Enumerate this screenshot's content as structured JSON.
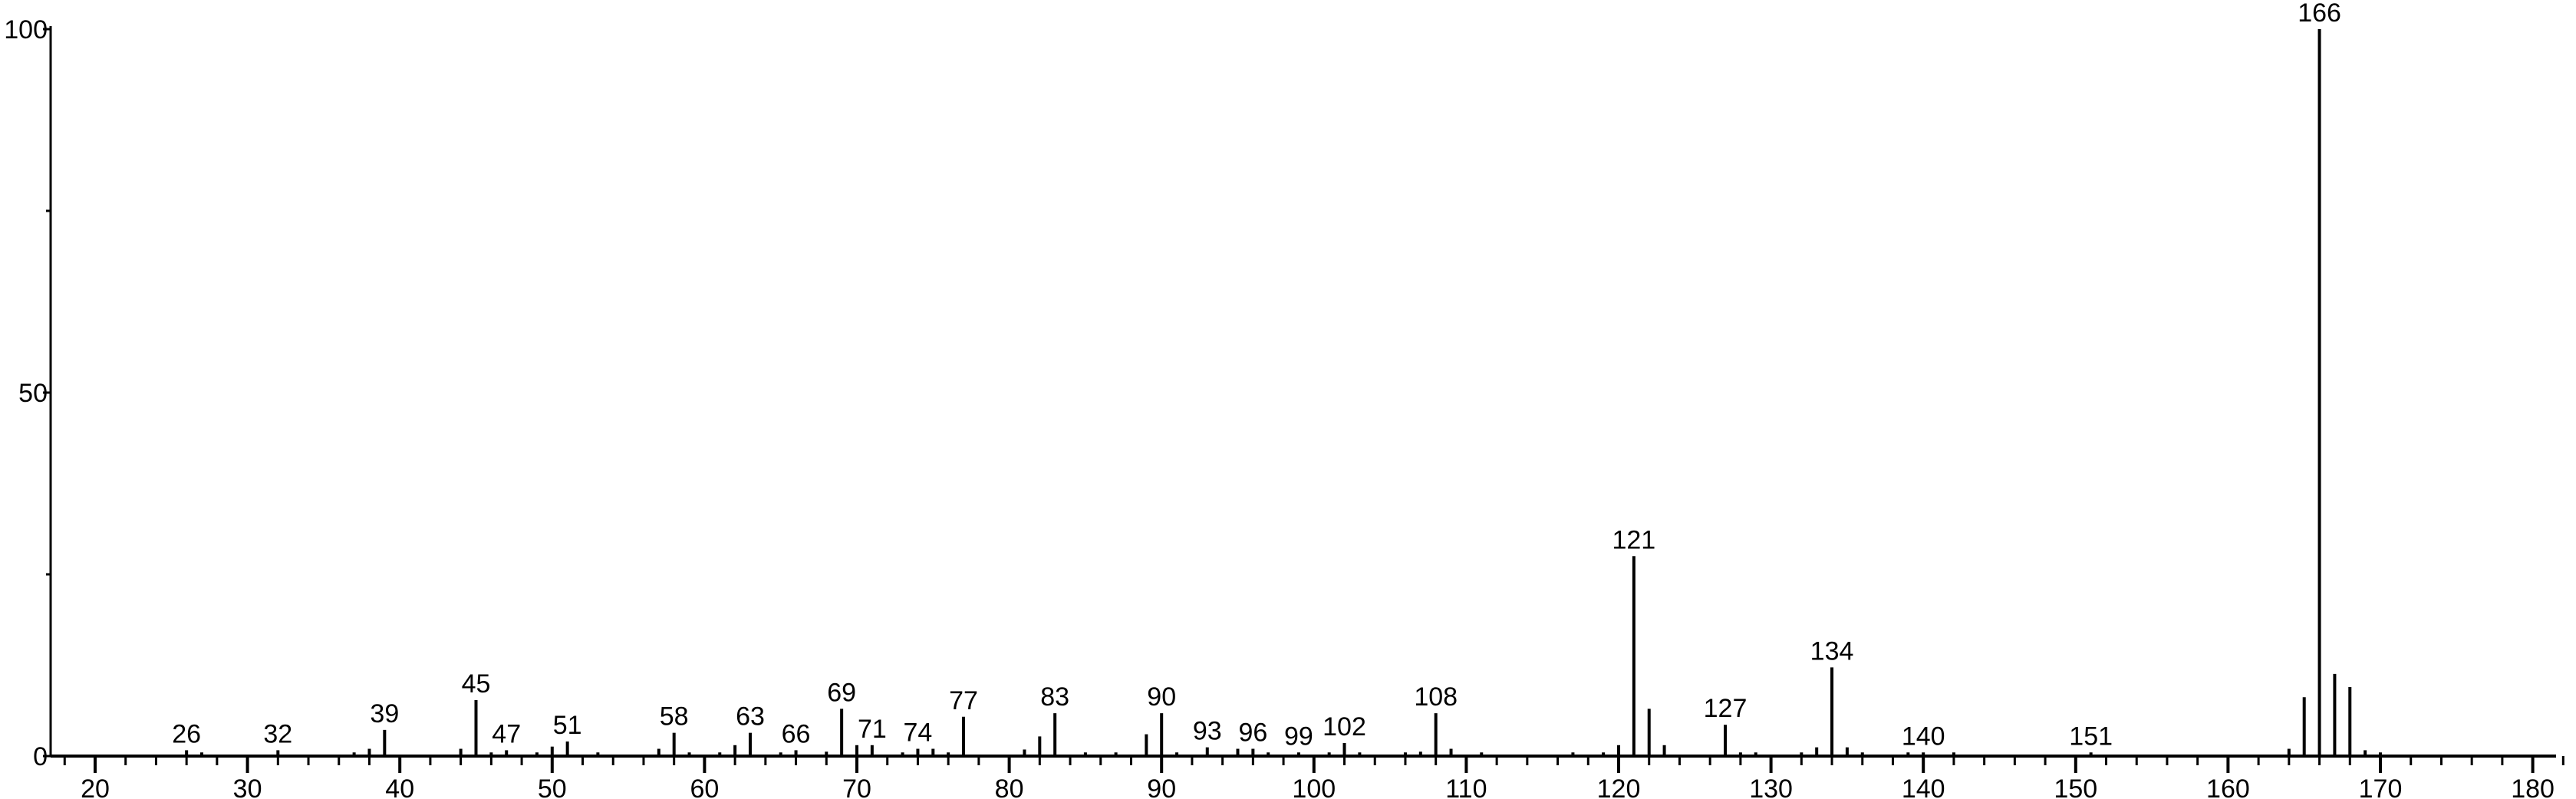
{
  "chart_data": {
    "type": "bar",
    "subtype": "mass-spectrum-stick",
    "title": "",
    "xlabel": "",
    "ylabel": "",
    "xlim": [
      17,
      182
    ],
    "ylim": [
      0,
      100
    ],
    "grid": false,
    "color": "#000000",
    "x_ticks": [
      20,
      30,
      40,
      50,
      60,
      70,
      80,
      90,
      100,
      110,
      120,
      130,
      140,
      150,
      160,
      170,
      180
    ],
    "y_ticks": [
      0,
      50,
      100
    ],
    "y_minor_ticks": [
      25,
      75
    ],
    "peaks": [
      {
        "x": 26,
        "y": 0.8,
        "label": "26"
      },
      {
        "x": 27,
        "y": 0.5
      },
      {
        "x": 32,
        "y": 0.8,
        "label": "32"
      },
      {
        "x": 37,
        "y": 0.5
      },
      {
        "x": 38,
        "y": 1.0
      },
      {
        "x": 39,
        "y": 3.6,
        "label": "39"
      },
      {
        "x": 44,
        "y": 1.0
      },
      {
        "x": 45,
        "y": 7.7,
        "label": "45"
      },
      {
        "x": 46,
        "y": 0.5
      },
      {
        "x": 47,
        "y": 0.8,
        "label": "47"
      },
      {
        "x": 49,
        "y": 0.5
      },
      {
        "x": 50,
        "y": 1.3
      },
      {
        "x": 51,
        "y": 2.0,
        "label": "51"
      },
      {
        "x": 53,
        "y": 0.5
      },
      {
        "x": 57,
        "y": 1.0
      },
      {
        "x": 58,
        "y": 3.2,
        "label": "58"
      },
      {
        "x": 59,
        "y": 0.5
      },
      {
        "x": 61,
        "y": 0.5
      },
      {
        "x": 62,
        "y": 1.5
      },
      {
        "x": 63,
        "y": 3.2,
        "label": "63"
      },
      {
        "x": 65,
        "y": 0.5
      },
      {
        "x": 66,
        "y": 0.8,
        "label": "66"
      },
      {
        "x": 68,
        "y": 0.6
      },
      {
        "x": 69,
        "y": 6.5,
        "label": "69"
      },
      {
        "x": 70,
        "y": 1.5
      },
      {
        "x": 71,
        "y": 1.5,
        "label": "71"
      },
      {
        "x": 73,
        "y": 0.5
      },
      {
        "x": 74,
        "y": 1.0,
        "label": "74"
      },
      {
        "x": 75,
        "y": 1.0
      },
      {
        "x": 76,
        "y": 0.5
      },
      {
        "x": 77,
        "y": 5.4,
        "label": "77"
      },
      {
        "x": 81,
        "y": 0.9
      },
      {
        "x": 82,
        "y": 2.7
      },
      {
        "x": 83,
        "y": 5.9,
        "label": "83"
      },
      {
        "x": 85,
        "y": 0.5
      },
      {
        "x": 87,
        "y": 0.5
      },
      {
        "x": 89,
        "y": 3.0
      },
      {
        "x": 90,
        "y": 5.9,
        "label": "90"
      },
      {
        "x": 91,
        "y": 0.5
      },
      {
        "x": 93,
        "y": 1.2,
        "label": "93"
      },
      {
        "x": 95,
        "y": 1.0
      },
      {
        "x": 96,
        "y": 1.0,
        "label": "96"
      },
      {
        "x": 97,
        "y": 0.5
      },
      {
        "x": 99,
        "y": 0.5,
        "label": "99"
      },
      {
        "x": 101,
        "y": 0.5
      },
      {
        "x": 102,
        "y": 1.8,
        "label": "102"
      },
      {
        "x": 103,
        "y": 0.5
      },
      {
        "x": 106,
        "y": 0.5
      },
      {
        "x": 107,
        "y": 0.6
      },
      {
        "x": 108,
        "y": 5.9,
        "label": "108"
      },
      {
        "x": 109,
        "y": 1.0
      },
      {
        "x": 111,
        "y": 0.5
      },
      {
        "x": 117,
        "y": 0.5
      },
      {
        "x": 119,
        "y": 0.5
      },
      {
        "x": 120,
        "y": 1.5
      },
      {
        "x": 121,
        "y": 27.5,
        "label": "121"
      },
      {
        "x": 122,
        "y": 6.5
      },
      {
        "x": 123,
        "y": 1.5
      },
      {
        "x": 127,
        "y": 4.3,
        "label": "127"
      },
      {
        "x": 128,
        "y": 0.5
      },
      {
        "x": 129,
        "y": 0.5
      },
      {
        "x": 132,
        "y": 0.5
      },
      {
        "x": 133,
        "y": 1.2
      },
      {
        "x": 134,
        "y": 12.2,
        "label": "134"
      },
      {
        "x": 135,
        "y": 1.2
      },
      {
        "x": 136,
        "y": 0.5
      },
      {
        "x": 139,
        "y": 0.5
      },
      {
        "x": 140,
        "y": 0.5,
        "label": "140"
      },
      {
        "x": 142,
        "y": 0.5
      },
      {
        "x": 151,
        "y": 0.5,
        "label": "151"
      },
      {
        "x": 164,
        "y": 1.0
      },
      {
        "x": 165,
        "y": 8.1
      },
      {
        "x": 166,
        "y": 100,
        "label": "166"
      },
      {
        "x": 167,
        "y": 11.3
      },
      {
        "x": 168,
        "y": 9.5
      },
      {
        "x": 169,
        "y": 0.8
      },
      {
        "x": 170,
        "y": 0.5
      }
    ]
  }
}
